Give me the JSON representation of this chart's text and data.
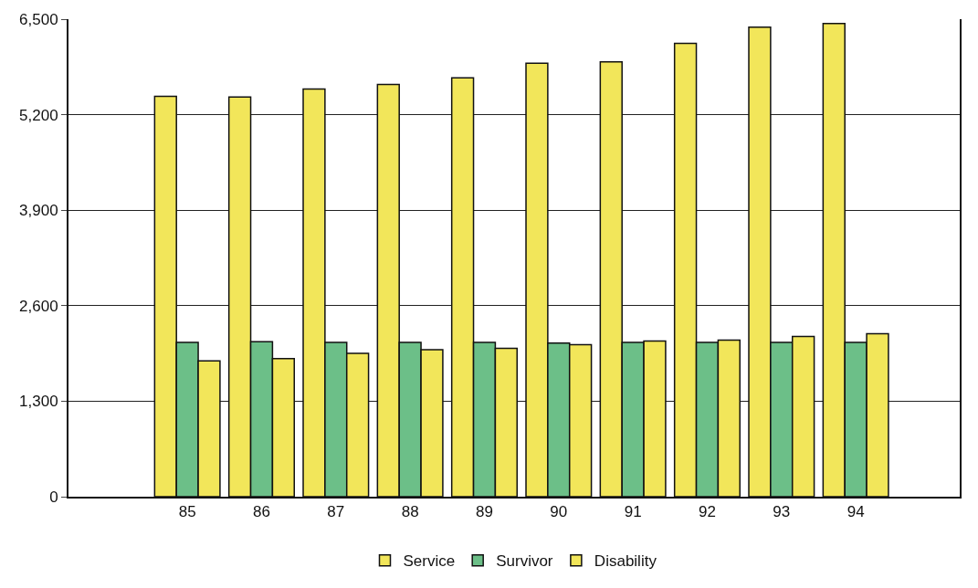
{
  "chart_data": {
    "type": "bar",
    "categories": [
      "85",
      "86",
      "87",
      "88",
      "89",
      "90",
      "91",
      "92",
      "93",
      "94"
    ],
    "series": [
      {
        "name": "Service",
        "color": "#f2e65a",
        "values": [
          5450,
          5440,
          5550,
          5610,
          5700,
          5900,
          5920,
          6170,
          6390,
          6440
        ]
      },
      {
        "name": "Survivor",
        "color": "#6cbf88",
        "values": [
          2100,
          2110,
          2100,
          2100,
          2100,
          2090,
          2100,
          2100,
          2100,
          2100
        ]
      },
      {
        "name": "Disability",
        "color": "#f2e65a",
        "values": [
          1850,
          1880,
          1950,
          2000,
          2020,
          2070,
          2120,
          2130,
          2180,
          2220
        ]
      }
    ],
    "ylim": [
      0,
      6500
    ],
    "yticks": [
      0,
      {
        "value": 1300,
        "label": "1,300"
      },
      {
        "value": 2600,
        "label": "2,600"
      },
      {
        "value": 3900,
        "label": "3,900"
      },
      {
        "value": 5200,
        "label": "5,200"
      },
      {
        "value": 6500,
        "label": "6,500"
      }
    ],
    "grid": "y",
    "legend": "bottom"
  }
}
